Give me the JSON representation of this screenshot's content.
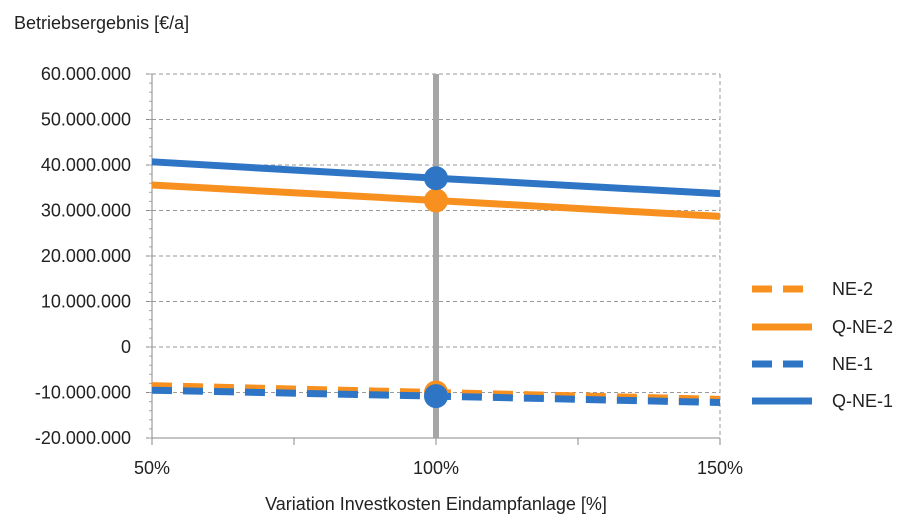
{
  "chart_data": {
    "type": "line",
    "ylabel": "Betriebsergebnis [€/a]",
    "xlabel": "Variation Investkosten Eindampfanlage [%]",
    "xlim": [
      50,
      150
    ],
    "ylim": [
      -20000000,
      60000000
    ],
    "x_ticks": [
      {
        "value": 50,
        "label": "50%"
      },
      {
        "value": 100,
        "label": "100%"
      },
      {
        "value": 150,
        "label": "150%"
      }
    ],
    "y_ticks": [
      {
        "value": 60000000,
        "label": "60.000.000"
      },
      {
        "value": 50000000,
        "label": "50.000.000"
      },
      {
        "value": 40000000,
        "label": "40.000.000"
      },
      {
        "value": 30000000,
        "label": "30.000.000"
      },
      {
        "value": 20000000,
        "label": "20.000.000"
      },
      {
        "value": 10000000,
        "label": "10.000.000"
      },
      {
        "value": 0,
        "label": "0"
      },
      {
        "value": -10000000,
        "label": "-10.000.000"
      },
      {
        "value": -20000000,
        "label": "-20.000.000"
      }
    ],
    "grid": true,
    "reference_line_x": 100,
    "legend_position": "right",
    "series": [
      {
        "name": "NE-2",
        "color": "#F7901E",
        "style": "dashed",
        "x": [
          50,
          100,
          150
        ],
        "y": [
          -8500000,
          -10000000,
          -11500000
        ]
      },
      {
        "name": "Q-NE-2",
        "color": "#F7901E",
        "style": "solid",
        "x": [
          50,
          100,
          150
        ],
        "y": [
          35600000,
          32200000,
          28700000
        ]
      },
      {
        "name": "NE-1",
        "color": "#2E75C6",
        "style": "dashed",
        "x": [
          50,
          100,
          150
        ],
        "y": [
          -9500000,
          -10800000,
          -12200000
        ]
      },
      {
        "name": "Q-NE-1",
        "color": "#2E75C6",
        "style": "solid",
        "x": [
          50,
          100,
          150
        ],
        "y": [
          40700000,
          37100000,
          33700000
        ]
      }
    ],
    "markers_at_x": 100,
    "reference_line_color": "#A6A6A6"
  }
}
